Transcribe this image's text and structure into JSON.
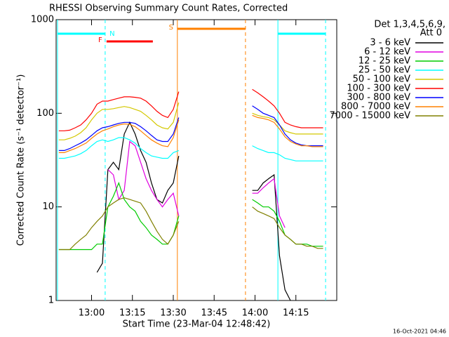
{
  "chart_data": {
    "type": "line",
    "title": "RHESSI Observing Summary Count Rates, Corrected",
    "xlabel": "Start Time (23-Mar-04 12:48:42)",
    "ylabel": "Corrected Count Rate (s⁻¹ detector⁻¹)",
    "legend_header": [
      "Det 1,3,4,5,6,9,",
      "Att 0"
    ],
    "footer": "16-Oct-2021 04:46",
    "log_y": true,
    "xlim": [
      767,
      870
    ],
    "xticks": [
      {
        "value": 780,
        "label": "13:00"
      },
      {
        "value": 795,
        "label": "13:15"
      },
      {
        "value": 810,
        "label": "13:30"
      },
      {
        "value": 825,
        "label": "13:45"
      },
      {
        "value": 840,
        "label": "14:00"
      },
      {
        "value": 855,
        "label": "14:15"
      }
    ],
    "ylim": [
      1,
      1000
    ],
    "yticks": [
      1,
      10,
      100,
      1000
    ],
    "x": [
      768,
      770,
      772,
      774,
      776,
      778,
      780,
      782,
      784,
      786,
      788,
      790,
      792,
      794,
      796,
      798,
      800,
      802,
      804,
      806,
      808,
      810,
      812,
      null,
      839,
      841,
      843,
      845,
      847,
      849,
      851,
      853,
      855,
      857,
      859,
      861,
      863,
      865
    ],
    "series": [
      {
        "name": "3 - 6 keV",
        "color": "#000000",
        "values": [
          null,
          null,
          null,
          null,
          null,
          null,
          null,
          2,
          2.5,
          25,
          30,
          25,
          60,
          80,
          60,
          40,
          30,
          18,
          12,
          11,
          15,
          18,
          35,
          null,
          15,
          15,
          18,
          20,
          22,
          3,
          1.3,
          1,
          null,
          null,
          null,
          null,
          null,
          null
        ]
      },
      {
        "name": "6 - 12 keV",
        "color": "#e000e0",
        "values": [
          null,
          null,
          null,
          null,
          null,
          null,
          null,
          null,
          null,
          25,
          22,
          12,
          15,
          50,
          45,
          30,
          20,
          15,
          12,
          10,
          12,
          14,
          8,
          null,
          14,
          14,
          16,
          18,
          20,
          8,
          6,
          null,
          null,
          null,
          null,
          null,
          null,
          null
        ]
      },
      {
        "name": "12 - 25 keV",
        "color": "#00cc00",
        "values": [
          3.5,
          3.5,
          3.5,
          3.5,
          3.5,
          3.5,
          3.5,
          4,
          4,
          10,
          13,
          18,
          12,
          10,
          9,
          7,
          6,
          5,
          4.5,
          4,
          4,
          5,
          8,
          null,
          12,
          11,
          10,
          10,
          9,
          7,
          5,
          4.5,
          4,
          4,
          4,
          3.8,
          3.8,
          3.8
        ]
      },
      {
        "name": "25 - 50 keV",
        "color": "#00ffff",
        "values": [
          33,
          33,
          34,
          35,
          37,
          40,
          45,
          50,
          52,
          50,
          52,
          55,
          55,
          52,
          48,
          42,
          38,
          35,
          34,
          33,
          33,
          38,
          40,
          null,
          45,
          42,
          40,
          38,
          38,
          36,
          33,
          32,
          31,
          31,
          31,
          31,
          31,
          31
        ]
      },
      {
        "name": "50 - 100 keV",
        "color": "#d4c800",
        "values": [
          52,
          52,
          54,
          57,
          62,
          70,
          85,
          100,
          110,
          110,
          112,
          115,
          118,
          115,
          110,
          105,
          95,
          85,
          75,
          70,
          68,
          80,
          130,
          null,
          100,
          95,
          92,
          90,
          85,
          75,
          65,
          62,
          60,
          60,
          60,
          60,
          60,
          60
        ]
      },
      {
        "name": "100 - 300 keV",
        "color": "#ff0000",
        "values": [
          65,
          65,
          66,
          70,
          75,
          85,
          100,
          125,
          135,
          135,
          140,
          145,
          150,
          150,
          148,
          145,
          135,
          120,
          105,
          95,
          90,
          110,
          170,
          null,
          180,
          165,
          150,
          135,
          120,
          100,
          80,
          75,
          72,
          70,
          70,
          70,
          70,
          70
        ]
      },
      {
        "name": "300 - 800 keV",
        "color": "#0000ff",
        "values": [
          40,
          40,
          42,
          45,
          48,
          52,
          58,
          65,
          70,
          72,
          75,
          78,
          80,
          80,
          78,
          72,
          65,
          58,
          52,
          50,
          50,
          60,
          90,
          null,
          120,
          110,
          100,
          95,
          90,
          75,
          60,
          52,
          48,
          46,
          45,
          45,
          45,
          45
        ]
      },
      {
        "name": "800 - 7000 keV",
        "color": "#ff8000",
        "values": [
          38,
          38,
          40,
          42,
          45,
          48,
          54,
          60,
          65,
          68,
          72,
          75,
          77,
          76,
          72,
          65,
          58,
          52,
          48,
          45,
          44,
          55,
          85,
          null,
          95,
          90,
          88,
          85,
          80,
          68,
          56,
          50,
          47,
          45,
          45,
          44,
          44,
          44
        ]
      },
      {
        "name": "7000 - 15000 keV",
        "color": "#808000",
        "values": [
          3.5,
          3.5,
          3.5,
          4,
          4.5,
          5,
          6,
          7,
          8,
          10,
          11,
          12,
          12.5,
          12,
          11.5,
          11,
          9,
          7,
          5.5,
          4.5,
          4,
          5,
          7,
          null,
          10,
          9,
          8.5,
          8,
          7.5,
          6,
          5,
          4.5,
          4,
          4,
          3.8,
          3.8,
          3.6,
          3.6
        ]
      }
    ],
    "vlines": [
      {
        "x": 767.5,
        "color": "#00ffff",
        "dashed": false
      },
      {
        "x": 785,
        "color": "#00ffff",
        "dashed": true
      },
      {
        "x": 811.5,
        "color": "#ff8000",
        "dashed": false
      },
      {
        "x": 836.5,
        "color": "#ff8000",
        "dashed": true
      },
      {
        "x": 848.4,
        "color": "#00ffff",
        "dashed": false
      },
      {
        "x": 865.9,
        "color": "#00ffff",
        "dashed": true
      }
    ],
    "flag_bars": [
      {
        "label": "N",
        "start": 767.5,
        "end": 785,
        "color": "#00ffff"
      },
      {
        "label": "F",
        "start": 785.5,
        "end": 802.5,
        "color": "#ff0000"
      },
      {
        "label": "S",
        "start": 811.5,
        "end": 836.5,
        "color": "#ff8000"
      },
      {
        "start": 848.4,
        "end": 865.9,
        "color": "#00ffff"
      }
    ]
  }
}
